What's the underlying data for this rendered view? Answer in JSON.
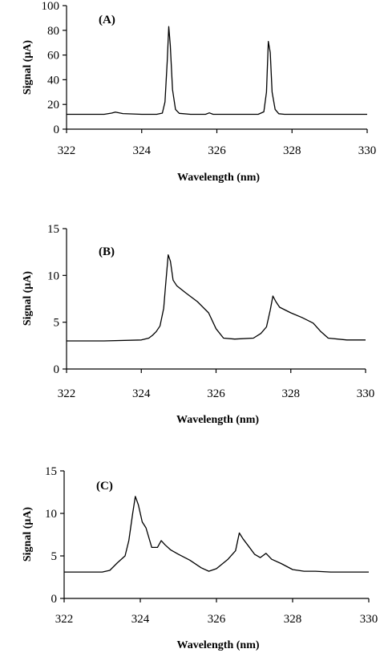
{
  "chart_data": [
    {
      "type": "line",
      "panel_label": "(A)",
      "xlabel": "Wavelength (nm)",
      "ylabel": "Signal (μA)",
      "xlim": [
        322,
        330
      ],
      "ylim": [
        0,
        100
      ],
      "xticks": [
        322,
        324,
        326,
        328,
        330
      ],
      "yticks": [
        0,
        20,
        40,
        60,
        80,
        100
      ],
      "grid": false,
      "series": [
        {
          "x": [
            322.0,
            322.5,
            323.0,
            323.2,
            323.3,
            323.5,
            324.0,
            324.4,
            324.55,
            324.62,
            324.68,
            324.72,
            324.76,
            324.82,
            324.9,
            325.0,
            325.3,
            325.7,
            325.8,
            325.9,
            326.3,
            326.8,
            327.1,
            327.25,
            327.32,
            327.37,
            327.42,
            327.47,
            327.55,
            327.65,
            327.8,
            328.5,
            329.0,
            330.0
          ],
          "y": [
            12.0,
            12.0,
            12.0,
            13.0,
            13.8,
            12.6,
            12.0,
            12.0,
            13.0,
            22.0,
            55.0,
            83.0,
            68.0,
            32.0,
            16.0,
            12.8,
            12.0,
            12.0,
            13.2,
            12.0,
            12.0,
            12.0,
            12.0,
            14.0,
            30.0,
            71.0,
            62.0,
            30.0,
            16.0,
            12.5,
            12.0,
            12.0,
            12.0,
            12.0
          ]
        }
      ]
    },
    {
      "type": "line",
      "panel_label": "(B)",
      "xlabel": "Wavelength (nm)",
      "ylabel": "Signal (μA)",
      "xlim": [
        322,
        330
      ],
      "ylim": [
        0,
        15
      ],
      "xticks": [
        322,
        324,
        326,
        328,
        330
      ],
      "yticks": [
        0,
        5,
        10,
        15
      ],
      "grid": false,
      "series": [
        {
          "x": [
            322.0,
            323.0,
            324.0,
            324.2,
            324.3,
            324.4,
            324.5,
            324.6,
            324.65,
            324.72,
            324.78,
            324.85,
            324.95,
            325.2,
            325.5,
            325.8,
            326.0,
            326.2,
            326.5,
            327.0,
            327.2,
            327.35,
            327.45,
            327.52,
            327.6,
            327.7,
            328.0,
            328.3,
            328.6,
            328.8,
            329.0,
            329.5,
            330.0
          ],
          "y": [
            3.0,
            3.0,
            3.1,
            3.3,
            3.6,
            4.0,
            4.6,
            6.5,
            9.0,
            12.2,
            11.5,
            9.5,
            8.9,
            8.1,
            7.2,
            6.0,
            4.3,
            3.3,
            3.2,
            3.3,
            3.8,
            4.5,
            6.3,
            7.8,
            7.2,
            6.6,
            6.0,
            5.5,
            4.9,
            4.0,
            3.3,
            3.1,
            3.1
          ]
        }
      ]
    },
    {
      "type": "line",
      "panel_label": "(C)",
      "xlabel": "Wavelength (nm)",
      "ylabel": "Signal (μA)",
      "xlim": [
        322,
        330
      ],
      "ylim": [
        0,
        15
      ],
      "xticks": [
        322,
        324,
        326,
        328,
        330
      ],
      "yticks": [
        0,
        5,
        10,
        15
      ],
      "grid": false,
      "series": [
        {
          "x": [
            322.0,
            323.0,
            323.2,
            323.4,
            323.6,
            323.7,
            323.8,
            323.87,
            323.95,
            324.05,
            324.15,
            324.3,
            324.45,
            324.55,
            324.65,
            324.8,
            325.0,
            325.3,
            325.6,
            325.8,
            326.0,
            326.3,
            326.5,
            326.6,
            326.7,
            326.85,
            327.0,
            327.15,
            327.3,
            327.45,
            327.7,
            328.0,
            328.3,
            328.6,
            329.0,
            329.5,
            330.0
          ],
          "y": [
            3.1,
            3.1,
            3.3,
            4.2,
            5.0,
            6.8,
            10.0,
            12.0,
            11.0,
            9.0,
            8.3,
            6.0,
            6.0,
            6.8,
            6.3,
            5.7,
            5.2,
            4.5,
            3.6,
            3.2,
            3.5,
            4.6,
            5.6,
            7.7,
            7.0,
            6.1,
            5.2,
            4.8,
            5.3,
            4.6,
            4.1,
            3.4,
            3.2,
            3.2,
            3.1,
            3.1,
            3.1
          ]
        }
      ]
    }
  ]
}
